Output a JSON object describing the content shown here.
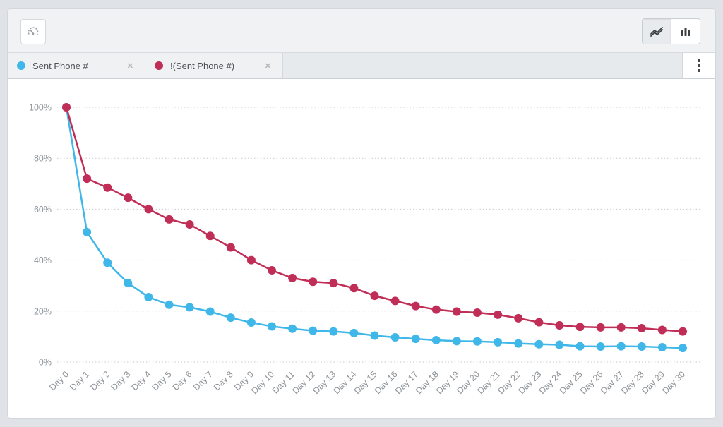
{
  "toolbar": {
    "gauge_button": {
      "icon": "gauge-icon"
    },
    "view_toggle": {
      "line_view": {
        "icon": "line-chart-icon",
        "selected": true
      },
      "bar_view": {
        "icon": "bar-chart-icon",
        "selected": false
      }
    }
  },
  "tabs": [
    {
      "label": "Sent Phone #",
      "dot_color": "#3fb7e8",
      "close_glyph": "✕"
    },
    {
      "label": "!(Sent Phone #)",
      "dot_color": "#c02e57",
      "close_glyph": "✕"
    }
  ],
  "menu": {
    "more_icon": "kebab-menu-icon"
  },
  "chart_data": {
    "type": "line",
    "title": "",
    "xlabel": "",
    "ylabel": "",
    "ylim": [
      0,
      100
    ],
    "grid": "horizontal-dotted",
    "legend_position": "tabs-top",
    "y_ticks": [
      "0%",
      "20%",
      "40%",
      "60%",
      "80%",
      "100%"
    ],
    "x_labels": [
      "Day 0",
      "Day 1",
      "Day 2",
      "Day 3",
      "Day 4",
      "Day 5",
      "Day 6",
      "Day 7",
      "Day 8",
      "Day 9",
      "Day 10",
      "Day 11",
      "Day 12",
      "Day 13",
      "Day 14",
      "Day 15",
      "Day 16",
      "Day 17",
      "Day 18",
      "Day 19",
      "Day 20",
      "Day 21",
      "Day 22",
      "Day 23",
      "Day 24",
      "Day 25",
      "Day 26",
      "Day 27",
      "Day 28",
      "Day 29",
      "Day 30"
    ],
    "series": [
      {
        "name": "Sent Phone #",
        "color": "#3fb7e8",
        "values": [
          100,
          51,
          39,
          31,
          25.5,
          22.5,
          21.5,
          19.8,
          17.4,
          15.5,
          14,
          13.1,
          12.3,
          12,
          11.4,
          10.4,
          9.7,
          9.1,
          8.6,
          8.2,
          8.1,
          7.8,
          7.3,
          7,
          6.8,
          6.2,
          6.1,
          6.2,
          6.1,
          5.8,
          5.5
        ]
      },
      {
        "name": "!(Sent Phone #)",
        "color": "#c02e57",
        "values": [
          100,
          72,
          68.5,
          64.5,
          60,
          56,
          54,
          49.5,
          45,
          40,
          36,
          33,
          31.5,
          31,
          29,
          26,
          24,
          22,
          20.6,
          19.8,
          19.4,
          18.6,
          17.2,
          15.6,
          14.4,
          13.8,
          13.6,
          13.6,
          13.3,
          12.6,
          12
        ]
      }
    ]
  }
}
